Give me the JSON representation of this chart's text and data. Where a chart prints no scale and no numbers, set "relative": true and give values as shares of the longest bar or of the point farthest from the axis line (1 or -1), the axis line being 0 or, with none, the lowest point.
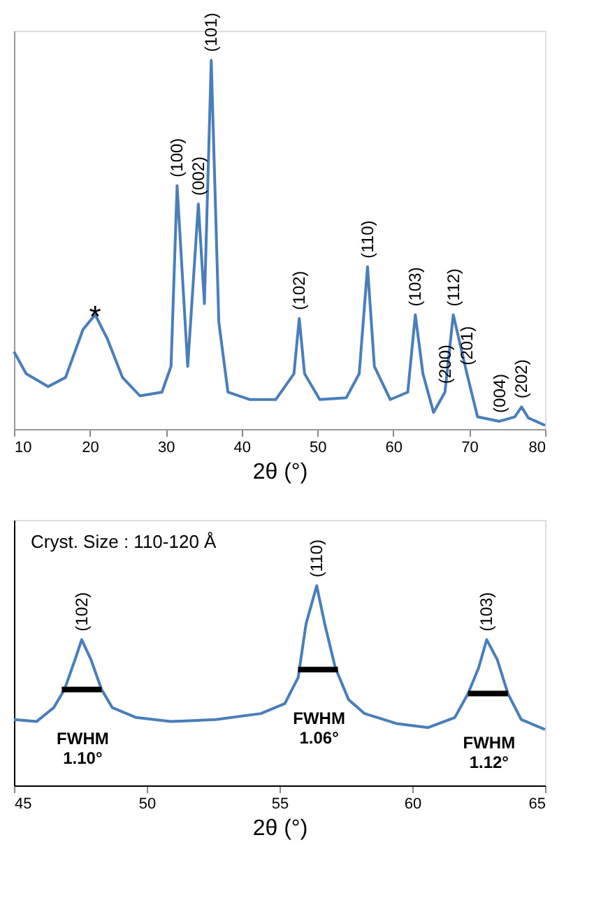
{
  "chart_data": [
    {
      "type": "line",
      "relative": true,
      "xlabel": "2θ (°)",
      "xlim": [
        10,
        80
      ],
      "xticks": [
        10,
        20,
        30,
        40,
        50,
        60,
        70,
        80
      ],
      "tick_labels": "x",
      "grid": false,
      "series": [
        {
          "color": "#4a7ebb",
          "x": [
            10.0,
            11.6,
            14.5,
            16.8,
            19.1,
            20.7,
            22.3,
            24.3,
            26.6,
            29.5,
            30.7,
            31.5,
            32.9,
            34.3,
            35.1,
            36.0,
            37.0,
            38.2,
            41.1,
            44.5,
            46.9,
            47.6,
            48.3,
            50.3,
            53.8,
            55.5,
            56.6,
            57.5,
            59.6,
            61.9,
            62.9,
            63.9,
            65.3,
            66.8,
            67.9,
            68.8,
            69.7,
            71.1,
            74.0,
            76.0,
            76.9,
            77.8,
            80.0
          ],
          "values": [
            0.21,
            0.15,
            0.115,
            0.14,
            0.27,
            0.31,
            0.245,
            0.14,
            0.09,
            0.1,
            0.17,
            0.66,
            0.17,
            0.61,
            0.34,
            1.0,
            0.29,
            0.1,
            0.08,
            0.08,
            0.15,
            0.3,
            0.15,
            0.08,
            0.085,
            0.15,
            0.44,
            0.17,
            0.08,
            0.1,
            0.31,
            0.15,
            0.045,
            0.1,
            0.31,
            0.23,
            0.15,
            0.033,
            0.021,
            0.033,
            0.06,
            0.03,
            0.01
          ]
        }
      ],
      "annotations": [
        {
          "text": "*",
          "x": 20.7,
          "y": 0.31
        },
        {
          "text": "(100)",
          "x": 31.5,
          "y": 0.66
        },
        {
          "text": "(002)",
          "x": 34.3,
          "y": 0.61
        },
        {
          "text": "(101)",
          "x": 36.0,
          "y": 1.0
        },
        {
          "text": "(102)",
          "x": 47.6,
          "y": 0.3
        },
        {
          "text": "(110)",
          "x": 56.6,
          "y": 0.44
        },
        {
          "text": "(103)",
          "x": 62.9,
          "y": 0.31
        },
        {
          "text": "(200)",
          "x": 66.8,
          "y": 0.1
        },
        {
          "text": "(112)",
          "x": 67.9,
          "y": 0.31
        },
        {
          "text": "(201)",
          "x": 69.7,
          "y": 0.15
        },
        {
          "text": "(004)",
          "x": 74.0,
          "y": 0.021
        },
        {
          "text": "(202)",
          "x": 76.9,
          "y": 0.06
        }
      ]
    },
    {
      "type": "line",
      "relative": true,
      "xlabel": "2θ (°)",
      "xlim": [
        45,
        65
      ],
      "xticks": [
        45,
        50,
        55,
        60,
        65
      ],
      "tick_labels": "x",
      "grid": false,
      "series": [
        {
          "color": "#4a7ebb",
          "x": [
            45.0,
            45.85,
            46.5,
            46.9,
            47.3,
            47.55,
            47.9,
            48.3,
            48.7,
            49.6,
            50.9,
            52.6,
            54.3,
            55.2,
            55.7,
            56.0,
            56.4,
            56.7,
            57.1,
            57.6,
            58.2,
            59.4,
            60.6,
            61.6,
            62.1,
            62.5,
            62.8,
            63.2,
            63.6,
            64.1,
            65.0
          ],
          "values": [
            0.33,
            0.32,
            0.39,
            0.48,
            0.63,
            0.73,
            0.63,
            0.48,
            0.39,
            0.34,
            0.32,
            0.33,
            0.36,
            0.41,
            0.54,
            0.81,
            1.0,
            0.81,
            0.59,
            0.43,
            0.36,
            0.31,
            0.29,
            0.34,
            0.46,
            0.59,
            0.73,
            0.63,
            0.46,
            0.33,
            0.28
          ]
        },
        {
          "type": "line",
          "color": "#000000",
          "x": [
            46.8,
            48.3
          ],
          "values": [
            0.48,
            0.48
          ]
        },
        {
          "type": "line",
          "color": "#000000",
          "x": [
            55.7,
            57.2
          ],
          "values": [
            0.58,
            0.58
          ]
        },
        {
          "type": "line",
          "color": "#000000",
          "x": [
            62.1,
            63.6
          ],
          "values": [
            0.46,
            0.46
          ]
        }
      ],
      "annotations": [
        "Cryst. Size : 110-120 Å",
        {
          "text": "(102)",
          "x": 47.55,
          "y": 0.73
        },
        {
          "text": "(110)",
          "x": 56.4,
          "y": 1.0
        },
        {
          "text": "(103)",
          "x": 62.8,
          "y": 0.73
        },
        {
          "text": "FWHM\n1.10°",
          "x": 46.8,
          "y": 0.48
        },
        {
          "text": "FWHM\n1.06°",
          "x": 55.7,
          "y": 0.58
        },
        {
          "text": "FWHM\n1.12°",
          "x": 62.1,
          "y": 0.46
        }
      ]
    }
  ]
}
